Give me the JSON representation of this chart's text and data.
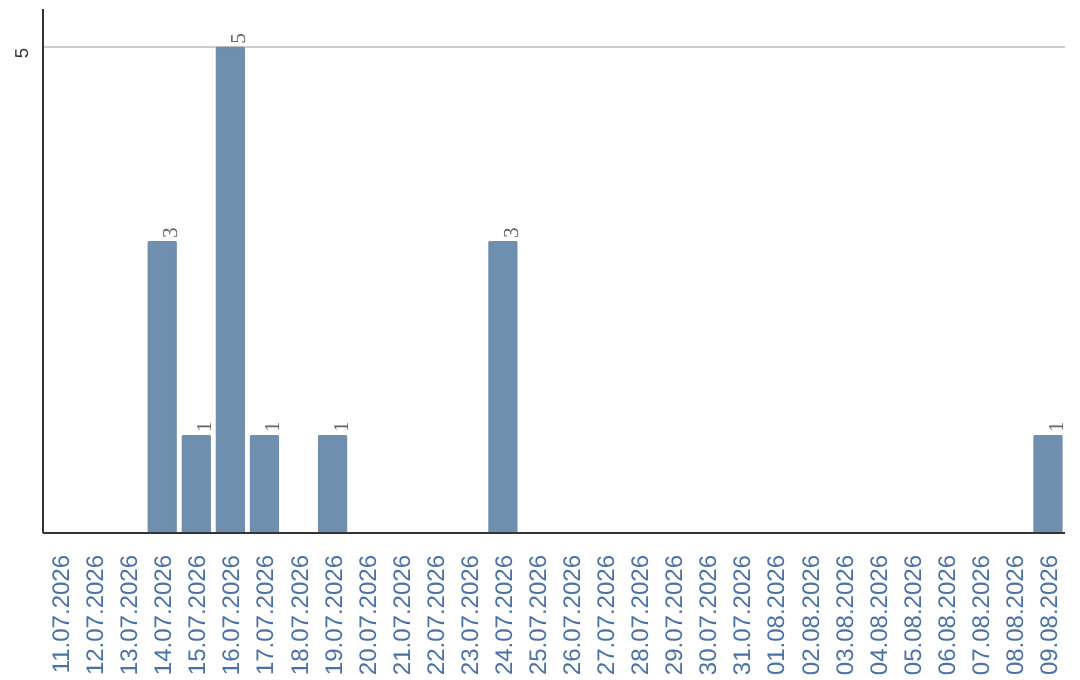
{
  "chart_data": {
    "type": "bar",
    "categories": [
      "11.07.2026",
      "12.07.2026",
      "13.07.2026",
      "14.07.2026",
      "15.07.2026",
      "16.07.2026",
      "17.07.2026",
      "18.07.2026",
      "19.07.2026",
      "20.07.2026",
      "21.07.2026",
      "22.07.2026",
      "23.07.2026",
      "24.07.2026",
      "25.07.2026",
      "26.07.2026",
      "27.07.2026",
      "28.07.2026",
      "29.07.2026",
      "30.07.2026",
      "31.07.2026",
      "01.08.2026",
      "02.08.2026",
      "03.08.2026",
      "04.08.2026",
      "05.08.2026",
      "06.08.2026",
      "07.08.2026",
      "08.08.2026",
      "09.08.2026"
    ],
    "values": [
      0,
      0,
      0,
      3,
      1,
      5,
      1,
      0,
      1,
      0,
      0,
      0,
      0,
      3,
      0,
      0,
      0,
      0,
      0,
      0,
      0,
      0,
      0,
      0,
      0,
      0,
      0,
      0,
      0,
      1
    ],
    "value_labels": [
      null,
      null,
      null,
      "3",
      "1",
      "5",
      "1",
      null,
      "1",
      null,
      null,
      null,
      null,
      "3",
      null,
      null,
      null,
      null,
      null,
      null,
      null,
      null,
      null,
      null,
      null,
      null,
      null,
      null,
      null,
      "1"
    ],
    "color": "#6f8fae",
    "ylim": [
      0,
      5.4
    ],
    "yticks": [
      5
    ],
    "grid": "y"
  }
}
